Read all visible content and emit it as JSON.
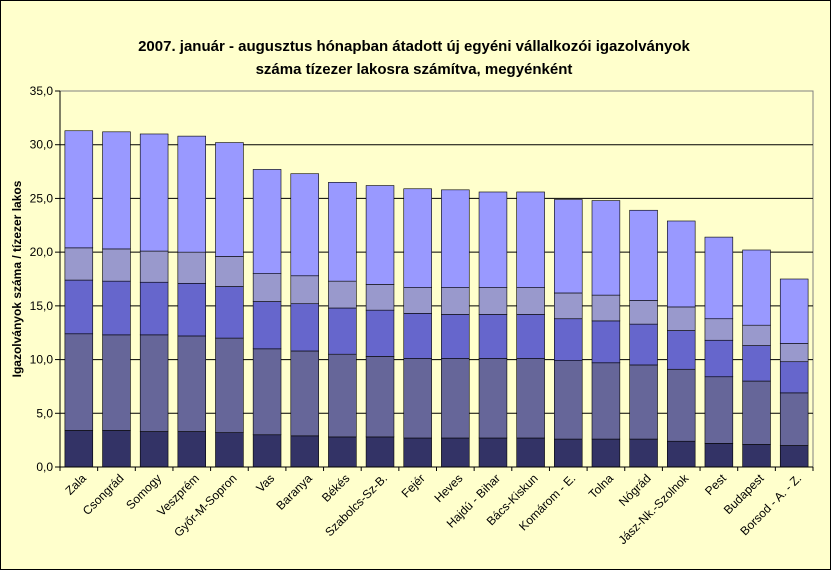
{
  "chart_data": {
    "type": "bar",
    "stacked": true,
    "title_line1": "2007. január - augusztus hónapban átadott új egyéni vállalkozói  igazolványok",
    "title_line2": "száma tízezer lakosra számítva, megyénként",
    "xlabel": "",
    "ylabel": "Igazolványok száma / tízezer lakos",
    "ylim": [
      0,
      35
    ],
    "yticks": [
      "0,0",
      "5,0",
      "10,0",
      "15,0",
      "20,0",
      "25,0",
      "30,0",
      "35,0"
    ],
    "grid": true,
    "legend": "none",
    "categories": [
      "Zala",
      "Csongrád",
      "Somogy",
      "Veszprém",
      "Győr-M-Sopron",
      "Vas",
      "Baranya",
      "Békés",
      "Szabolcs-Sz-B.",
      "Fejér",
      "Heves",
      "Hajdú - Bihar",
      "Bács-Kiskun",
      "Komárom - E.",
      "Tolna",
      "Nógrád",
      "Jász-Nk.-Szolnok",
      "Pest",
      "Budapest",
      "Borsod - A. - Z."
    ],
    "segment_colors": [
      "#333366",
      "#666699",
      "#6666cc",
      "#9999cc",
      "#9999ff"
    ],
    "series": [
      {
        "values": [
          3.4,
          3.4,
          3.3,
          3.3,
          3.2,
          3.0,
          2.9,
          2.8,
          2.8,
          2.7,
          2.7,
          2.7,
          2.7,
          2.6,
          2.6,
          2.6,
          2.4,
          2.2,
          2.1,
          2.0
        ]
      },
      {
        "values": [
          9.0,
          8.9,
          9.0,
          8.9,
          8.8,
          8.0,
          7.9,
          7.7,
          7.5,
          7.4,
          7.4,
          7.4,
          7.4,
          7.3,
          7.1,
          6.9,
          6.7,
          6.2,
          5.9,
          4.9
        ]
      },
      {
        "values": [
          5.0,
          5.0,
          4.9,
          4.9,
          4.8,
          4.4,
          4.4,
          4.3,
          4.3,
          4.2,
          4.1,
          4.1,
          4.1,
          3.9,
          3.9,
          3.8,
          3.6,
          3.4,
          3.3,
          2.9
        ]
      },
      {
        "values": [
          3.0,
          3.0,
          2.9,
          2.9,
          2.8,
          2.6,
          2.6,
          2.5,
          2.4,
          2.4,
          2.5,
          2.5,
          2.5,
          2.4,
          2.4,
          2.2,
          2.2,
          2.0,
          1.9,
          1.7
        ]
      },
      {
        "values": [
          10.9,
          10.9,
          10.9,
          10.8,
          10.6,
          9.7,
          9.5,
          9.2,
          9.2,
          9.2,
          9.1,
          8.9,
          8.9,
          8.7,
          8.8,
          8.4,
          8.0,
          7.6,
          7.0,
          6.0
        ]
      }
    ]
  }
}
